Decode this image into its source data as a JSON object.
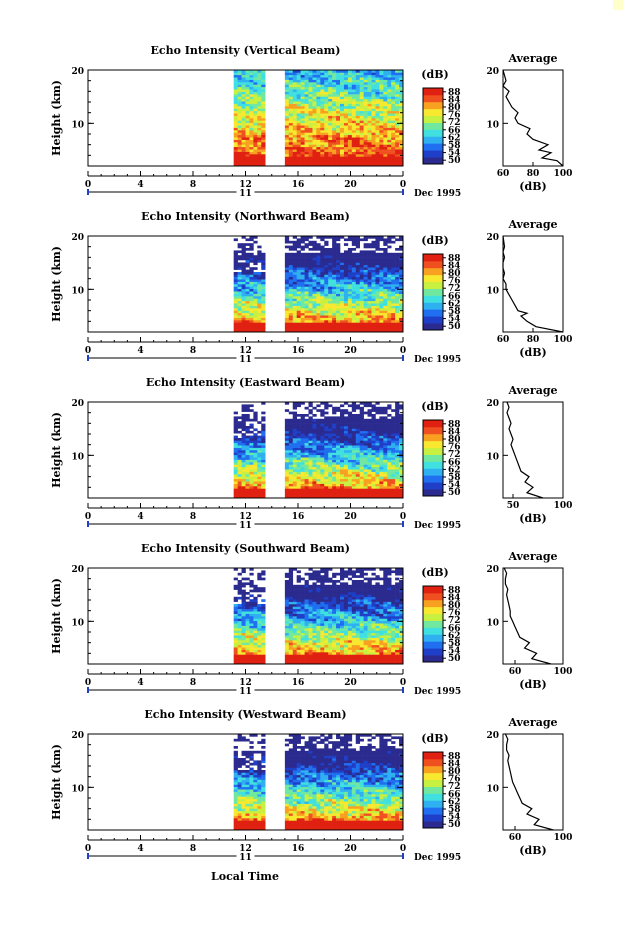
{
  "corner_color": "#ffffcc",
  "bottom_label": "Local Time",
  "colorbar": {
    "unit": "(dB)",
    "ticks": [
      "50",
      "54",
      "58",
      "62",
      "66",
      "72",
      "76",
      "80",
      "84",
      "88"
    ],
    "colors": [
      "#2a2a8f",
      "#1f3fc8",
      "#1f6ff0",
      "#2fb0f0",
      "#40e0e0",
      "#70e8a0",
      "#c8f040",
      "#f8e830",
      "#f8a020",
      "#f05020",
      "#e02010"
    ]
  },
  "chart_data": [
    {
      "type": "heatmap",
      "title": "Echo Intensity (Vertical Beam)",
      "ylabel": "Height (km)",
      "xlabel": "",
      "x_ticks": [
        "0",
        "4",
        "8",
        "12",
        "16",
        "20",
        "0"
      ],
      "y_ticks": [
        "20",
        "10"
      ],
      "xlim": [
        0,
        24
      ],
      "ylim": [
        2,
        20
      ],
      "date_marker": "11",
      "date_label": "Dec 1995",
      "data_gaps_hours": [
        [
          0,
          11.2
        ],
        [
          13.5,
          15
        ]
      ],
      "profile": {
        "title": "Average",
        "xlabel": "(dB)",
        "x_ticks": [
          "60",
          "80",
          "100"
        ],
        "y_ticks": [
          "20",
          "10"
        ],
        "xlim": [
          60,
          100
        ],
        "ylim": [
          2,
          20
        ],
        "x": [
          100,
          96,
          86,
          92,
          84,
          90,
          80,
          76,
          78,
          70,
          68,
          70,
          66,
          64,
          62,
          64,
          60,
          62,
          60
        ],
        "y": [
          2,
          3,
          3.5,
          4.5,
          5,
          6,
          7,
          8,
          9,
          10,
          11,
          12,
          13,
          14,
          15,
          16,
          17,
          18,
          20
        ]
      }
    },
    {
      "type": "heatmap",
      "title": "Echo Intensity (Northward Beam)",
      "ylabel": "Height (km)",
      "xlabel": "",
      "x_ticks": [
        "0",
        "4",
        "8",
        "12",
        "16",
        "20",
        "0"
      ],
      "y_ticks": [
        "20",
        "10"
      ],
      "xlim": [
        0,
        24
      ],
      "ylim": [
        2,
        20
      ],
      "date_marker": "11",
      "date_label": "Dec 1995",
      "data_gaps_hours": [
        [
          0,
          11.2
        ],
        [
          13.5,
          15
        ]
      ],
      "profile": {
        "title": "Average",
        "xlabel": "(dB)",
        "x_ticks": [
          "60",
          "80",
          "100"
        ],
        "y_ticks": [
          "20",
          "10"
        ],
        "xlim": [
          60,
          100
        ],
        "ylim": [
          2,
          20
        ],
        "x": [
          100,
          82,
          76,
          72,
          76,
          70,
          68,
          66,
          64,
          62,
          62,
          60,
          61,
          60,
          60,
          61,
          60,
          61,
          60
        ],
        "y": [
          2,
          3,
          4,
          5,
          5.5,
          6,
          7,
          8,
          9,
          10,
          11,
          12,
          13,
          14,
          15,
          16,
          17,
          18,
          20
        ]
      }
    },
    {
      "type": "heatmap",
      "title": "Echo Intensity (Eastward Beam)",
      "ylabel": "Height (km)",
      "xlabel": "",
      "x_ticks": [
        "0",
        "4",
        "8",
        "12",
        "16",
        "20",
        "0"
      ],
      "y_ticks": [
        "20",
        "10"
      ],
      "xlim": [
        0,
        24
      ],
      "ylim": [
        2,
        20
      ],
      "date_marker": "11",
      "date_label": "Dec 1995",
      "data_gaps_hours": [
        [
          0,
          11.2
        ],
        [
          13.5,
          15
        ]
      ],
      "profile": {
        "title": "Average",
        "xlabel": "(dB)",
        "x_ticks": [
          "50",
          "100"
        ],
        "y_ticks": [
          "20",
          "10"
        ],
        "xlim": [
          40,
          100
        ],
        "ylim": [
          2,
          20
        ],
        "x": [
          80,
          64,
          70,
          62,
          66,
          58,
          56,
          54,
          52,
          50,
          48,
          50,
          48,
          46,
          48,
          46,
          44,
          46,
          44
        ],
        "y": [
          2,
          3,
          4,
          5,
          6,
          7,
          8,
          9,
          10,
          11,
          12,
          13,
          14,
          15,
          16,
          17,
          18,
          19,
          20
        ]
      }
    },
    {
      "type": "heatmap",
      "title": "Echo Intensity (Southward Beam)",
      "ylabel": "Height (km)",
      "xlabel": "",
      "x_ticks": [
        "0",
        "4",
        "8",
        "12",
        "16",
        "20",
        "0"
      ],
      "y_ticks": [
        "20",
        "10"
      ],
      "xlim": [
        0,
        24
      ],
      "ylim": [
        2,
        20
      ],
      "date_marker": "11",
      "date_label": "Dec 1995",
      "data_gaps_hours": [
        [
          0,
          11.2
        ],
        [
          13.5,
          15
        ]
      ],
      "profile": {
        "title": "Average",
        "xlabel": "(dB)",
        "x_ticks": [
          "60",
          "100"
        ],
        "y_ticks": [
          "20",
          "10"
        ],
        "xlim": [
          50,
          100
        ],
        "ylim": [
          2,
          20
        ],
        "x": [
          90,
          74,
          78,
          68,
          72,
          64,
          62,
          60,
          58,
          56,
          56,
          55,
          54,
          53,
          54,
          52,
          52,
          53,
          51
        ],
        "y": [
          2,
          3,
          4,
          5,
          6,
          7,
          8,
          9,
          10,
          11,
          12,
          13,
          14,
          15,
          16,
          17,
          18,
          19,
          20
        ]
      }
    },
    {
      "type": "heatmap",
      "title": "Echo Intensity (Westward Beam)",
      "ylabel": "Height (km)",
      "xlabel": "",
      "x_ticks": [
        "0",
        "4",
        "8",
        "12",
        "16",
        "20",
        "0"
      ],
      "y_ticks": [
        "20",
        "10"
      ],
      "xlim": [
        0,
        24
      ],
      "ylim": [
        2,
        20
      ],
      "date_marker": "11",
      "date_label": "Dec 1995",
      "data_gaps_hours": [
        [
          0,
          11.2
        ],
        [
          13.5,
          15
        ]
      ],
      "profile": {
        "title": "Average",
        "xlabel": "(dB)",
        "x_ticks": [
          "60",
          "100"
        ],
        "y_ticks": [
          "20",
          "10"
        ],
        "xlim": [
          50,
          100
        ],
        "ylim": [
          2,
          20
        ],
        "x": [
          92,
          76,
          80,
          70,
          74,
          66,
          64,
          62,
          60,
          58,
          57,
          56,
          55,
          54,
          55,
          53,
          53,
          54,
          52
        ],
        "y": [
          2,
          3,
          4,
          5,
          6,
          7,
          8,
          9,
          10,
          11,
          12,
          13,
          14,
          15,
          16,
          17,
          18,
          19,
          20
        ]
      }
    }
  ]
}
